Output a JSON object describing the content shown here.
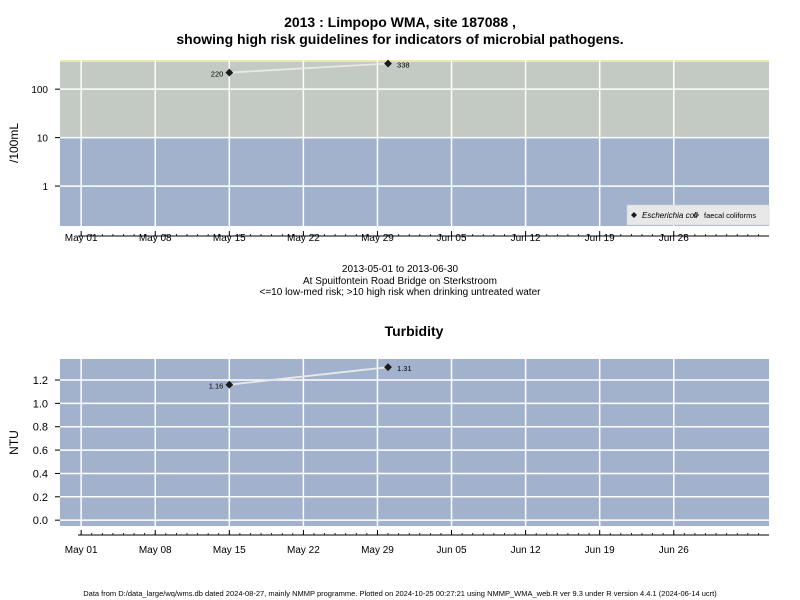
{
  "header": {
    "title_line1": "2013 : Limpopo WMA, site 187088 ,",
    "title_line2": "showing high risk guidelines for indicators of microbial pathogens."
  },
  "captions": {
    "date_range": "2013-05-01 to 2013-06-30",
    "location": "At Spuitfontein Road Bridge on Sterkstroom",
    "risk_note": "<=10 low-med risk; >10 high risk when drinking untreated water"
  },
  "footer": {
    "text": "Data from D:/data_large/wq/wms.db dated 2024-08-27, mainly NMMP programme. Plotted on 2024-10-25 00:27:21 using NMMP_WMA_web.R ver 9.3 under R version 4.4.1 (2024-06-14 ucrt)"
  },
  "colors": {
    "high_risk_band": "#c3c9c3",
    "low_risk_band": "#a2b2cc",
    "gridline": "#ffffff",
    "series_line": "#e8e8e8",
    "marker": "#1a1a1a"
  },
  "chart_data": [
    {
      "type": "line",
      "title": "",
      "ylabel": "/100mL",
      "yscale": "log",
      "ylim": [
        0.15,
        400
      ],
      "yticks": [
        1,
        10,
        100
      ],
      "ytick_labels": [
        "1",
        "10",
        "100"
      ],
      "threshold": 10,
      "x_ticks": [
        "May 01",
        "May 08",
        "May 15",
        "May 22",
        "May 29",
        "Jun 05",
        "Jun 12",
        "Jun 19",
        "Jun 26"
      ],
      "x_tick_dates": [
        "2013-05-01",
        "2013-05-08",
        "2013-05-15",
        "2013-05-22",
        "2013-05-29",
        "2013-06-05",
        "2013-06-12",
        "2013-06-19",
        "2013-06-26"
      ],
      "xlim": [
        "2013-04-29",
        "2013-07-05"
      ],
      "grid": true,
      "legend": {
        "position": "bottom-right",
        "entries": [
          {
            "label": "Escherichia coli",
            "marker": "filled-diamond",
            "italic": true
          },
          {
            "label": "faecal coliforms",
            "marker": "open-diamond",
            "italic": false
          }
        ]
      },
      "series": [
        {
          "name": "Escherichia coli",
          "points": [
            {
              "x": "2013-05-15",
              "y": 220,
              "label": "220"
            },
            {
              "x": "2013-05-30",
              "y": 338,
              "label": "338"
            }
          ]
        }
      ]
    },
    {
      "type": "line",
      "title": "Turbidity",
      "ylabel": "NTU",
      "yscale": "linear",
      "ylim": [
        -0.05,
        1.38
      ],
      "yticks": [
        0.0,
        0.2,
        0.4,
        0.6,
        0.8,
        1.0,
        1.2
      ],
      "ytick_labels": [
        "0.0",
        "0.2",
        "0.4",
        "0.6",
        "0.8",
        "1.0",
        "1.2"
      ],
      "x_ticks": [
        "May 01",
        "May 08",
        "May 15",
        "May 22",
        "May 29",
        "Jun 05",
        "Jun 12",
        "Jun 19",
        "Jun 26"
      ],
      "x_tick_dates": [
        "2013-05-01",
        "2013-05-08",
        "2013-05-15",
        "2013-05-22",
        "2013-05-29",
        "2013-06-05",
        "2013-06-12",
        "2013-06-19",
        "2013-06-26"
      ],
      "xlim": [
        "2013-04-29",
        "2013-07-05"
      ],
      "grid": true,
      "series": [
        {
          "name": "",
          "points": [
            {
              "x": "2013-05-15",
              "y": 1.16,
              "label": "1.16"
            },
            {
              "x": "2013-05-30",
              "y": 1.31,
              "label": "1.31"
            }
          ]
        }
      ]
    }
  ]
}
